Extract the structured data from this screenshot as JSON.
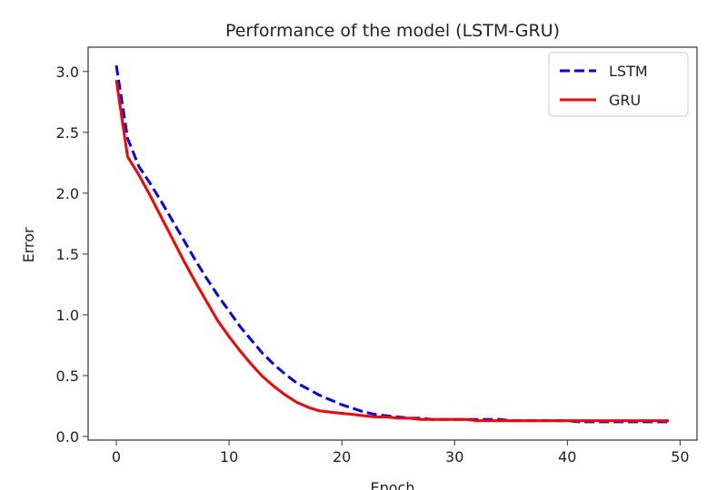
{
  "chart_data": {
    "type": "line",
    "title": "Performance of the model (LSTM-GRU)",
    "xlabel": "Epoch",
    "ylabel": "Error",
    "xlim": [
      -2.5,
      51.5
    ],
    "ylim": [
      -0.03,
      3.2
    ],
    "xticks": [
      0,
      10,
      20,
      30,
      40,
      50
    ],
    "yticks": [
      "0.0",
      "0.5",
      "1.0",
      "1.5",
      "2.0",
      "2.5",
      "3.0"
    ],
    "grid": false,
    "legend_position": "top-right",
    "series": [
      {
        "name": "LSTM",
        "color": "#0000ff",
        "style": "dashed",
        "values": [
          3.05,
          2.45,
          2.22,
          2.08,
          1.93,
          1.77,
          1.61,
          1.45,
          1.3,
          1.16,
          1.03,
          0.9,
          0.79,
          0.68,
          0.59,
          0.51,
          0.44,
          0.39,
          0.34,
          0.3,
          0.26,
          0.23,
          0.2,
          0.18,
          0.17,
          0.16,
          0.15,
          0.15,
          0.14,
          0.14,
          0.14,
          0.14,
          0.14,
          0.14,
          0.14,
          0.13,
          0.13,
          0.13,
          0.13,
          0.13,
          0.13,
          0.12,
          0.12,
          0.12,
          0.12,
          0.12,
          0.12,
          0.12,
          0.12,
          0.12
        ]
      },
      {
        "name": "GRU",
        "color": "#ff0000",
        "style": "solid",
        "values": [
          2.93,
          2.3,
          2.15,
          1.98,
          1.8,
          1.62,
          1.44,
          1.27,
          1.11,
          0.95,
          0.82,
          0.7,
          0.59,
          0.49,
          0.41,
          0.34,
          0.28,
          0.24,
          0.21,
          0.2,
          0.19,
          0.18,
          0.17,
          0.16,
          0.16,
          0.15,
          0.15,
          0.14,
          0.14,
          0.14,
          0.14,
          0.14,
          0.13,
          0.13,
          0.13,
          0.13,
          0.13,
          0.13,
          0.13,
          0.13,
          0.13,
          0.13,
          0.13,
          0.13,
          0.13,
          0.13,
          0.13,
          0.13,
          0.13,
          0.13
        ]
      }
    ]
  }
}
